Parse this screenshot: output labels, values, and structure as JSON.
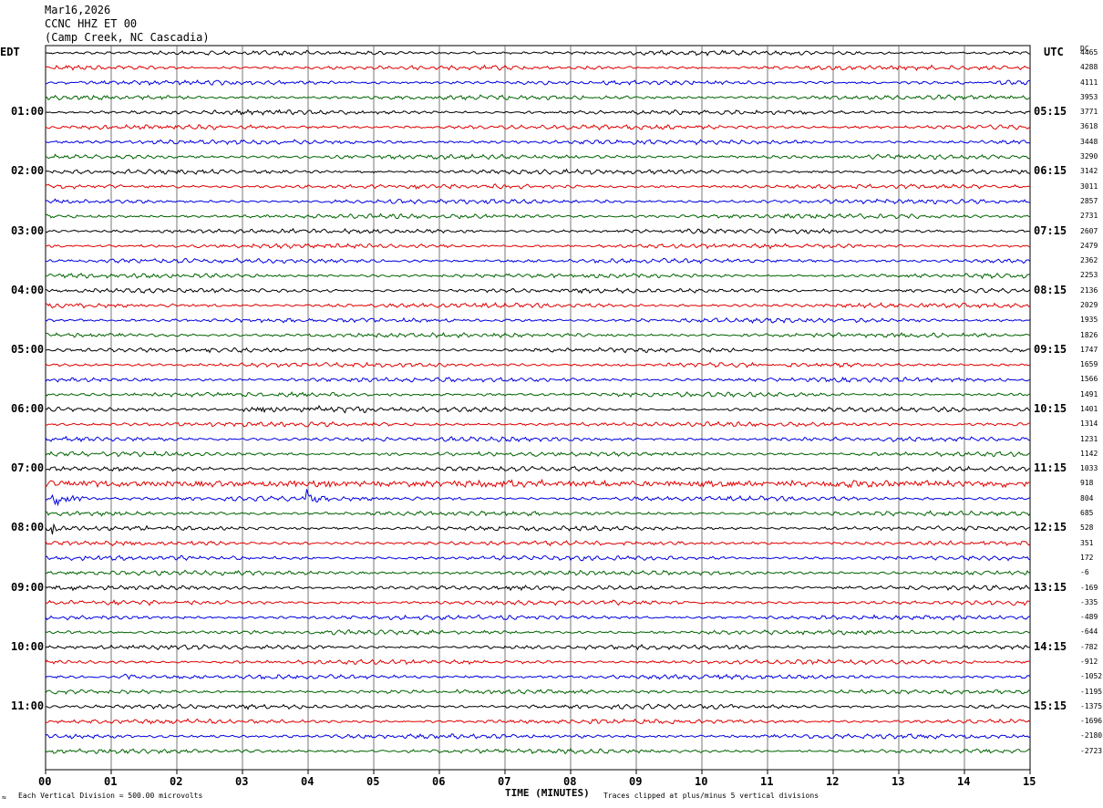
{
  "header": {
    "date": "Mar16,2026",
    "station": "CCNC HHZ ET 00",
    "location": "(Camp Creek, NC Cascadia)"
  },
  "axes": {
    "left_tz": "EDT",
    "right_tz": "UTC",
    "dc_label": "DC",
    "xlabel": "TIME (MINUTES)",
    "x_ticks": [
      "00",
      "01",
      "02",
      "03",
      "04",
      "05",
      "06",
      "07",
      "08",
      "09",
      "10",
      "11",
      "12",
      "13",
      "14",
      "15"
    ]
  },
  "left_hours": [
    "01:00",
    "02:00",
    "03:00",
    "04:00",
    "05:00",
    "06:00",
    "07:00",
    "08:00",
    "09:00",
    "10:00",
    "11:00"
  ],
  "right_hours": [
    "05:15",
    "06:15",
    "07:15",
    "08:15",
    "09:15",
    "10:15",
    "11:15",
    "12:15",
    "13:15",
    "14:15",
    "15:15"
  ],
  "dc_values": [
    "4465",
    "4288",
    "4111",
    "3953",
    "3771",
    "3618",
    "3448",
    "3290",
    "3142",
    "3011",
    "2857",
    "2731",
    "2607",
    "2479",
    "2362",
    "2253",
    "2136",
    "2029",
    "1935",
    "1826",
    "1747",
    "1659",
    "1566",
    "1491",
    "1401",
    "1314",
    "1231",
    "1142",
    "1033",
    "918",
    "804",
    "685",
    "528",
    "351",
    "172",
    "-6",
    "-169",
    "-335",
    "-489",
    "-644",
    "-782",
    "-912",
    "-1052",
    "-1195",
    "-1375",
    "-1696",
    "-2180",
    "-2723"
  ],
  "footer": {
    "division_note": "Each Vertical Division =  500.00 microvolts",
    "clip_note": "Traces clipped at plus/minus 5 vertical divisions",
    "corner_mark": "≈"
  },
  "colors": {
    "trace_cycle": [
      "#000000",
      "#e00000",
      "#0000e0",
      "#006400"
    ],
    "grid": "#000000"
  },
  "chart_data": {
    "type": "line",
    "title": "CCNC HHZ ET 00",
    "xlabel": "TIME (MINUTES)",
    "xlim": [
      0,
      15
    ],
    "trace_count": 48,
    "minutes_per_trace": 15,
    "events": [
      {
        "trace": 29,
        "minute": 0.0,
        "end_minute": 15.0,
        "amplitude": 3,
        "kind": "noise-burst"
      },
      {
        "trace": 30,
        "minute": 0.1,
        "end_minute": 1.2,
        "amplitude": 10,
        "kind": "event"
      },
      {
        "trace": 30,
        "minute": 3.95,
        "end_minute": 4.3,
        "amplitude": 18,
        "kind": "event"
      },
      {
        "trace": 32,
        "minute": 0.1,
        "end_minute": 0.5,
        "amplitude": 12,
        "kind": "event"
      },
      {
        "trace": 24,
        "minute": 3.0,
        "end_minute": 5.0,
        "amplitude": 3,
        "kind": "noise-burst"
      },
      {
        "trace": 42,
        "minute": 1.2,
        "end_minute": 1.7,
        "amplitude": 4,
        "kind": "event"
      }
    ]
  }
}
